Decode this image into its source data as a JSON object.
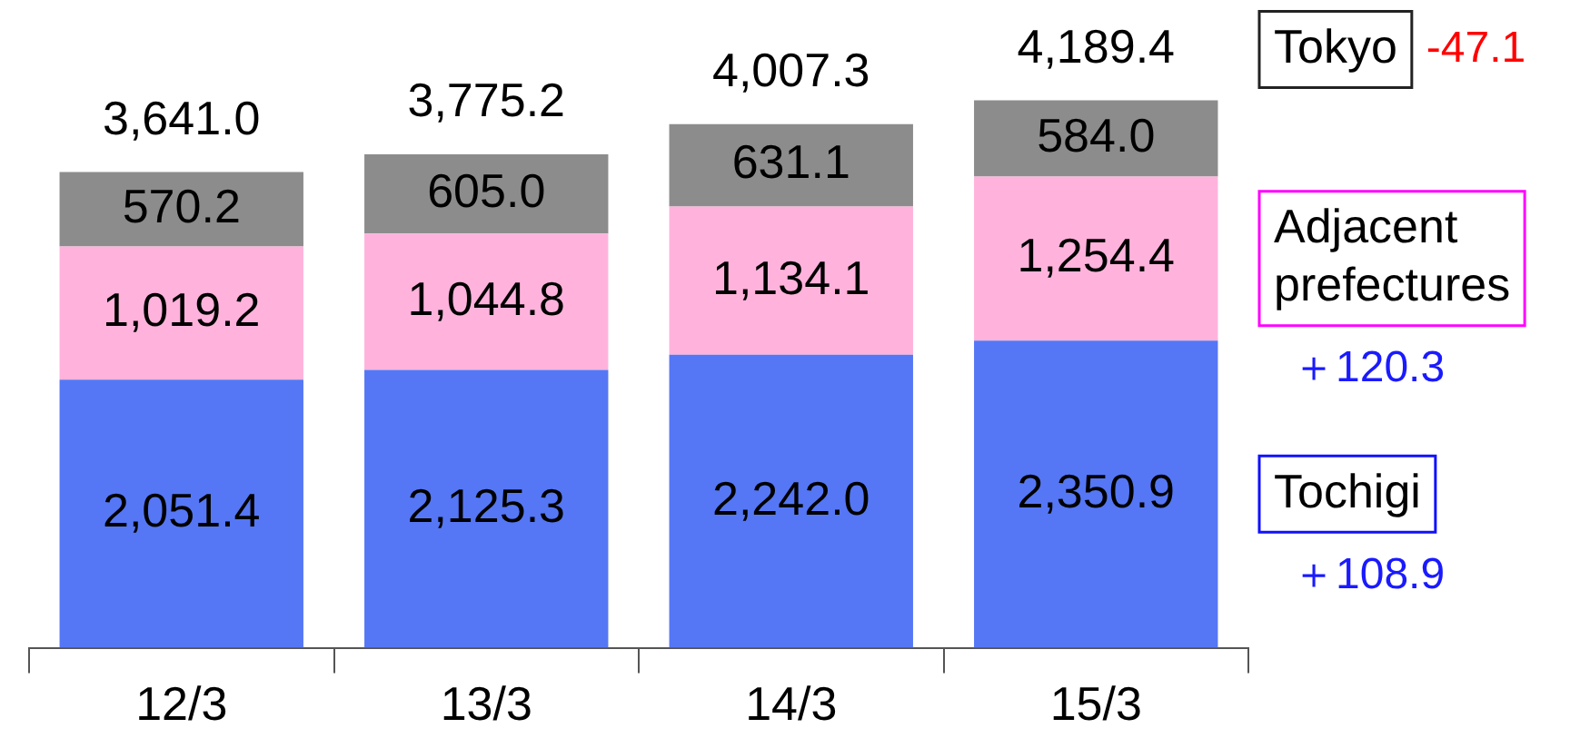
{
  "chart_data": {
    "type": "bar",
    "stacked": true,
    "legend": "right",
    "categories": [
      "12/3",
      "13/3",
      "14/3",
      "15/3"
    ],
    "series": [
      {
        "name": "Tochigi",
        "color": "#5577f5",
        "values": [
          2051.4,
          2125.3,
          2242.0,
          2350.9
        ],
        "value_labels": [
          "2,051.4",
          "2,125.3",
          "2,242.0",
          "2,350.9"
        ]
      },
      {
        "name": "Adjacent prefectures",
        "color": "#ffb3dc",
        "values": [
          1019.2,
          1044.8,
          1134.1,
          1254.4
        ],
        "value_labels": [
          "1,019.2",
          "1,044.8",
          "1,134.1",
          "1,254.4"
        ]
      },
      {
        "name": "Tokyo",
        "color": "#8c8c8c",
        "values": [
          570.2,
          605.0,
          631.1,
          584.0
        ],
        "value_labels": [
          "570.2",
          "605.0",
          "631.1",
          "584.0"
        ]
      }
    ],
    "totals": [
      "3,641.0",
      "3,775.2",
      "4,007.3",
      "4,189.4"
    ],
    "annotations": [
      "-47.1",
      "＋120.3",
      "＋108.9"
    ]
  }
}
